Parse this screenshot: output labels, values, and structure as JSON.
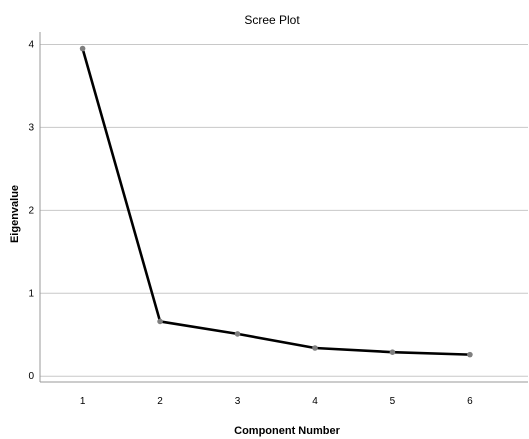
{
  "chart_data": {
    "type": "line",
    "title": "Scree Plot",
    "xlabel": "Component Number",
    "ylabel": "Eigenvalue",
    "x": [
      1,
      2,
      3,
      4,
      5,
      6
    ],
    "series": [
      {
        "values": [
          3.95,
          0.66,
          0.51,
          0.34,
          0.29,
          0.26
        ]
      }
    ],
    "xlim": [
      0.45,
      6.75
    ],
    "ylim": [
      -0.07,
      4.15
    ],
    "yticks": [
      0,
      1,
      2,
      3,
      4
    ],
    "grid": "horizontal",
    "line_color": "#000000",
    "marker_color": "#7f7f7f",
    "grid_color": "#c8c8c8"
  }
}
